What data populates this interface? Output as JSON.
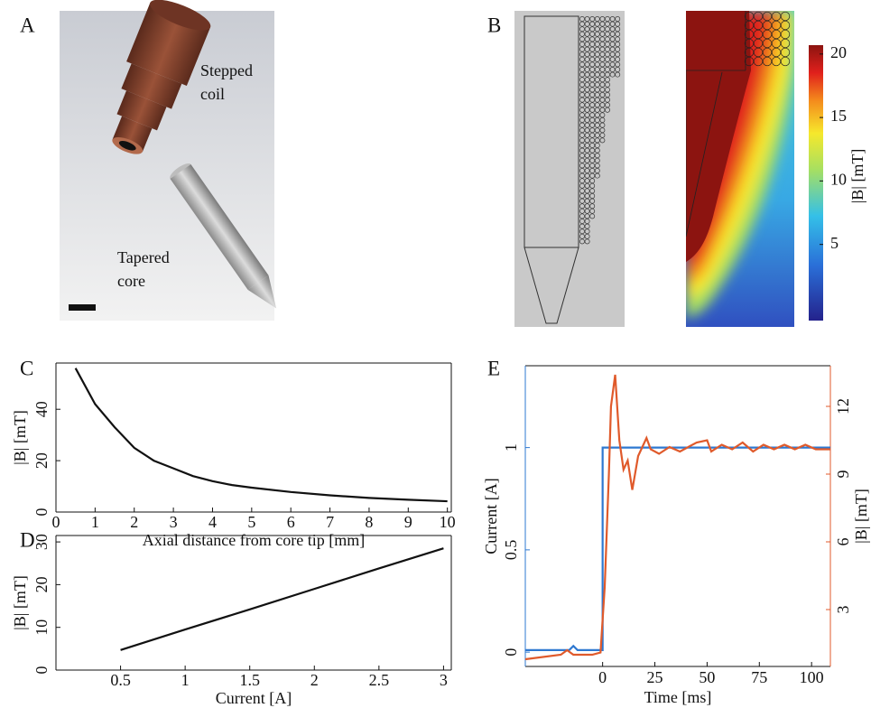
{
  "illustration": {
    "panel_label": "A",
    "annotations": [
      [
        "Stepped",
        "coil"
      ],
      [
        "Tapered",
        "core"
      ]
    ]
  },
  "field_map": {
    "panel_label": "B",
    "colorbar_label": "|B| [mT]",
    "colorbar_lim": [
      -1,
      20.7
    ],
    "colorbar_ticks": [
      5,
      10,
      15,
      20
    ]
  },
  "chart_data": [
    {
      "panel_label": "C",
      "type": "line",
      "xlabel": "Axial distance from core tip [mm]",
      "ylabel": "|B| [mT]",
      "x": [
        0.5,
        1,
        1.5,
        2,
        2.5,
        3,
        3.5,
        4,
        4.5,
        5,
        6,
        7,
        8,
        9,
        10
      ],
      "values": [
        56,
        42,
        33,
        25,
        20,
        17,
        14,
        12,
        10.5,
        9.5,
        7.8,
        6.5,
        5.5,
        4.8,
        4.2
      ],
      "color": "#111111",
      "xlim": [
        0,
        10.1
      ],
      "ylim": [
        0,
        58
      ],
      "xticks": [
        0,
        1,
        2,
        3,
        4,
        5,
        6,
        7,
        8,
        9,
        10
      ],
      "yticks": [
        0,
        20,
        40
      ]
    },
    {
      "panel_label": "D",
      "type": "line",
      "xlabel": "Current [A]",
      "ylabel": "|B| [mT]",
      "x": [
        0.5,
        1,
        1.5,
        2,
        2.5,
        3
      ],
      "values": [
        4.7,
        9.5,
        14.2,
        19,
        23.8,
        28.5
      ],
      "color": "#111111",
      "xlim": [
        0,
        3.06
      ],
      "ylim": [
        0,
        31.5
      ],
      "xticks": [
        0.5,
        1,
        1.5,
        2,
        2.5,
        3
      ],
      "yticks": [
        0,
        10,
        20,
        30
      ]
    },
    {
      "panel_label": "E",
      "type": "line",
      "xlabel": "Time [ms]",
      "ylabel": "Current [A]",
      "y2label": "|B| [mT]",
      "xlim": [
        -37,
        109
      ],
      "ylim": [
        -0.07,
        1.4
      ],
      "y2lim": [
        0.48,
        13.8
      ],
      "xticks": [
        0,
        25,
        50,
        75,
        100
      ],
      "yticks": [
        0,
        0.5,
        1
      ],
      "y2ticks": [
        3,
        6,
        9,
        12
      ],
      "series": [
        {
          "color": "#2e78d0",
          "x": [
            -37,
            -16,
            -14,
            -12,
            0,
            0,
            109
          ],
          "values": [
            0.01,
            0.01,
            0.03,
            0.01,
            0.01,
            1,
            1
          ]
        },
        {
          "color": "#e05a2b",
          "axis": "y2",
          "x": [
            -37,
            -20,
            -17,
            -14,
            -5,
            -1,
            1,
            3,
            4,
            6,
            8,
            10,
            12,
            14.2,
            17,
            21,
            23,
            27,
            32,
            37,
            45,
            50,
            52,
            57,
            62,
            67,
            72,
            77,
            82,
            87,
            92,
            97,
            102,
            109
          ],
          "values": [
            0.8,
            1.0,
            1.2,
            1.0,
            1.0,
            1.1,
            4,
            9,
            12,
            13.4,
            10.5,
            9.2,
            9.6,
            8.3,
            9.8,
            10.6,
            10.1,
            9.9,
            10.2,
            10.0,
            10.4,
            10.5,
            10.0,
            10.3,
            10.1,
            10.4,
            10.0,
            10.3,
            10.1,
            10.3,
            10.1,
            10.3,
            10.1,
            10.1
          ]
        }
      ]
    }
  ]
}
